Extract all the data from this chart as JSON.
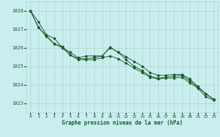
{
  "title": "Graphe pression niveau de la mer (hPa)",
  "bg_color": "#c8eef0",
  "grid_color": "#b0d8cc",
  "line_color": "#1a5c2a",
  "xlim": [
    -0.5,
    23.5
  ],
  "ylim": [
    1022.5,
    1028.5
  ],
  "yticks": [
    1023,
    1024,
    1025,
    1026,
    1027,
    1028
  ],
  "xticks": [
    0,
    1,
    2,
    3,
    4,
    5,
    6,
    7,
    8,
    9,
    10,
    11,
    12,
    13,
    14,
    15,
    16,
    17,
    18,
    19,
    20,
    21,
    22,
    23
  ],
  "series1": [
    1028.0,
    1027.4,
    1026.7,
    1026.5,
    1026.0,
    1025.75,
    1025.45,
    1025.55,
    1025.55,
    1025.55,
    1026.0,
    1025.75,
    1025.5,
    1025.25,
    1025.0,
    1024.65,
    1024.5,
    1024.5,
    1024.55,
    1024.55,
    1024.3,
    1023.9,
    1023.5,
    1023.2
  ],
  "series2": [
    1028.0,
    1027.1,
    1026.65,
    1026.2,
    1026.05,
    1025.6,
    1025.4,
    1025.4,
    1025.45,
    1025.55,
    1026.02,
    1025.75,
    1025.35,
    1025.0,
    1024.75,
    1024.45,
    1024.35,
    1024.4,
    1024.45,
    1024.5,
    1024.2,
    1023.85,
    1023.5,
    1023.2
  ],
  "series3": [
    1028.0,
    1027.1,
    1026.6,
    1026.2,
    1026.0,
    1025.6,
    1025.35,
    1025.35,
    1025.35,
    1025.45,
    1025.55,
    1025.4,
    1025.15,
    1024.9,
    1024.65,
    1024.4,
    1024.3,
    1024.35,
    1024.35,
    1024.4,
    1024.1,
    1023.8,
    1023.35,
    1023.15
  ]
}
